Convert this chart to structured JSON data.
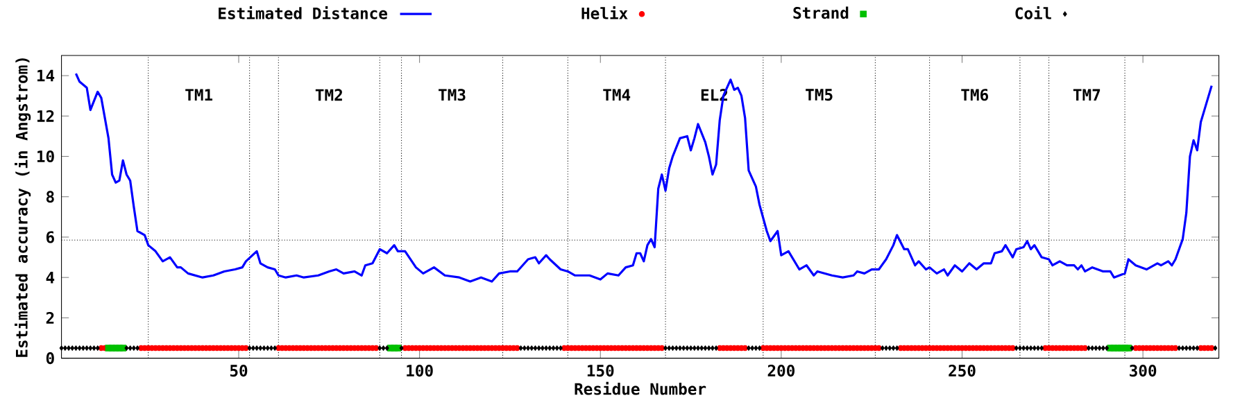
{
  "chart_data": {
    "type": "line",
    "xlabel": "Residue Number",
    "ylabel": "Estimated accuracy (in Angstrom)",
    "xlim": [
      1,
      321
    ],
    "ylim": [
      0,
      15
    ],
    "xticks": [
      50,
      100,
      150,
      200,
      250,
      300
    ],
    "yticks": [
      0,
      2,
      4,
      6,
      8,
      10,
      12,
      14
    ],
    "legend": "top",
    "ref_lines": [
      {
        "axis": "y",
        "value": 5.85,
        "line_style": "dotted"
      },
      {
        "axis": "x",
        "value": 25,
        "line_style": "dotted",
        "label": "TM1"
      },
      {
        "axis": "x",
        "value": 53,
        "line_style": "dotted"
      },
      {
        "axis": "x",
        "value": 61,
        "line_style": "dotted",
        "label": "TM2"
      },
      {
        "axis": "x",
        "value": 89,
        "line_style": "dotted"
      },
      {
        "axis": "x",
        "value": 95,
        "line_style": "dotted",
        "label": "TM3"
      },
      {
        "axis": "x",
        "value": 123,
        "line_style": "dotted"
      },
      {
        "axis": "x",
        "value": 141,
        "line_style": "dotted",
        "label": "TM4"
      },
      {
        "axis": "x",
        "value": 168,
        "line_style": "dotted",
        "label": "EL2"
      },
      {
        "axis": "x",
        "value": 195,
        "line_style": "dotted",
        "label": "TM5"
      },
      {
        "axis": "x",
        "value": 226,
        "line_style": "dotted"
      },
      {
        "axis": "x",
        "value": 241,
        "line_style": "dotted",
        "label": "TM6"
      },
      {
        "axis": "x",
        "value": 266,
        "line_style": "dotted"
      },
      {
        "axis": "x",
        "value": 274,
        "line_style": "dotted",
        "label": "TM7"
      },
      {
        "axis": "x",
        "value": 295,
        "line_style": "dotted"
      }
    ],
    "series": [
      {
        "name": "Estimated Distance",
        "color": "#0000ff",
        "marker": "none",
        "x": [
          5,
          6,
          8,
          9,
          11,
          12,
          14,
          15,
          16,
          17,
          18,
          19,
          20,
          21,
          22,
          24,
          25,
          27,
          29,
          31,
          33,
          34,
          36,
          40,
          43,
          46,
          49,
          51,
          52,
          55,
          56,
          58,
          60,
          61,
          63,
          66,
          68,
          72,
          75,
          77,
          79,
          82,
          84,
          85,
          87,
          89,
          91,
          93,
          94,
          96,
          99,
          101,
          104,
          107,
          111,
          114,
          117,
          120,
          122,
          125,
          127,
          130,
          132,
          133,
          135,
          136,
          139,
          141,
          143,
          147,
          150,
          152,
          155,
          157,
          159,
          160,
          161,
          162,
          163,
          164,
          165,
          166,
          167,
          168,
          169,
          170,
          172,
          174,
          175,
          176,
          177,
          179,
          180,
          181,
          182,
          183,
          184,
          186,
          187,
          188,
          189,
          190,
          191,
          193,
          194,
          196,
          197,
          199,
          200,
          202,
          205,
          207,
          209,
          210,
          214,
          217,
          220,
          221,
          223,
          225,
          227,
          229,
          231,
          232,
          234,
          235,
          237,
          238,
          240,
          241,
          243,
          245,
          246,
          248,
          250,
          252,
          254,
          256,
          258,
          259,
          261,
          262,
          264,
          265,
          267,
          268,
          269,
          270,
          272,
          274,
          275,
          277,
          279,
          281,
          282,
          283,
          284,
          286,
          289,
          291,
          292,
          295,
          296,
          298,
          301,
          304,
          305,
          307,
          308,
          309,
          311,
          312,
          313,
          314,
          315,
          316,
          317,
          318,
          319
        ],
        "values": [
          14.1,
          13.7,
          13.4,
          12.3,
          13.2,
          12.9,
          10.9,
          9.1,
          8.7,
          8.8,
          9.8,
          9.1,
          8.8,
          7.5,
          6.3,
          6.1,
          5.6,
          5.3,
          4.8,
          5.0,
          4.5,
          4.5,
          4.2,
          4.0,
          4.1,
          4.3,
          4.4,
          4.5,
          4.8,
          5.3,
          4.7,
          4.5,
          4.4,
          4.1,
          4.0,
          4.1,
          4.0,
          4.1,
          4.3,
          4.4,
          4.2,
          4.3,
          4.1,
          4.6,
          4.7,
          5.4,
          5.2,
          5.6,
          5.3,
          5.3,
          4.5,
          4.2,
          4.5,
          4.1,
          4.0,
          3.8,
          4.0,
          3.8,
          4.2,
          4.3,
          4.3,
          4.9,
          5.0,
          4.7,
          5.1,
          4.9,
          4.4,
          4.3,
          4.1,
          4.1,
          3.9,
          4.2,
          4.1,
          4.5,
          4.6,
          5.2,
          5.2,
          4.8,
          5.6,
          5.9,
          5.5,
          8.4,
          9.1,
          8.3,
          9.4,
          10.0,
          10.9,
          11.0,
          10.3,
          10.9,
          11.6,
          10.7,
          10.0,
          9.1,
          9.6,
          11.8,
          13.0,
          13.8,
          13.3,
          13.4,
          13.0,
          11.9,
          9.3,
          8.5,
          7.6,
          6.3,
          5.8,
          6.3,
          5.1,
          5.3,
          4.4,
          4.6,
          4.1,
          4.3,
          4.1,
          4.0,
          4.1,
          4.3,
          4.2,
          4.4,
          4.4,
          4.9,
          5.6,
          6.1,
          5.4,
          5.4,
          4.6,
          4.8,
          4.4,
          4.5,
          4.2,
          4.4,
          4.1,
          4.6,
          4.3,
          4.7,
          4.4,
          4.7,
          4.7,
          5.2,
          5.3,
          5.6,
          5.0,
          5.4,
          5.5,
          5.8,
          5.4,
          5.6,
          5.0,
          4.9,
          4.6,
          4.8,
          4.6,
          4.6,
          4.4,
          4.6,
          4.3,
          4.5,
          4.3,
          4.3,
          4.0,
          4.2,
          4.9,
          4.6,
          4.4,
          4.7,
          4.6,
          4.8,
          4.6,
          4.9,
          5.9,
          7.2,
          10.0,
          10.8,
          10.3,
          11.7,
          12.3,
          12.9,
          13.5
        ]
      },
      {
        "name": "Helix",
        "type": "scatter",
        "color": "#ff0000",
        "marker": "circle",
        "x": [
          12,
          13,
          23,
          24,
          25,
          26,
          27,
          28,
          29,
          30,
          31,
          32,
          33,
          34,
          35,
          36,
          37,
          38,
          39,
          40,
          41,
          42,
          43,
          44,
          45,
          46,
          47,
          48,
          49,
          50,
          51,
          52,
          61,
          62,
          63,
          64,
          65,
          66,
          67,
          68,
          69,
          70,
          71,
          72,
          73,
          74,
          75,
          76,
          77,
          78,
          79,
          80,
          81,
          82,
          83,
          84,
          85,
          86,
          87,
          88,
          96,
          97,
          98,
          99,
          100,
          101,
          102,
          103,
          104,
          105,
          106,
          107,
          108,
          109,
          110,
          111,
          112,
          113,
          114,
          115,
          116,
          117,
          118,
          119,
          120,
          121,
          122,
          123,
          124,
          125,
          126,
          127,
          140,
          141,
          142,
          143,
          144,
          145,
          146,
          147,
          148,
          149,
          150,
          151,
          152,
          153,
          154,
          155,
          156,
          157,
          158,
          159,
          160,
          161,
          162,
          163,
          164,
          165,
          166,
          167,
          183,
          184,
          185,
          186,
          187,
          188,
          189,
          190,
          195,
          196,
          197,
          198,
          199,
          200,
          201,
          202,
          203,
          204,
          205,
          206,
          207,
          208,
          209,
          210,
          211,
          212,
          213,
          214,
          215,
          216,
          217,
          218,
          219,
          220,
          221,
          222,
          223,
          224,
          225,
          226,
          227,
          233,
          234,
          235,
          236,
          237,
          238,
          239,
          240,
          241,
          242,
          243,
          244,
          245,
          246,
          247,
          248,
          249,
          250,
          251,
          252,
          253,
          254,
          255,
          256,
          257,
          258,
          259,
          260,
          261,
          262,
          263,
          264,
          273,
          274,
          275,
          276,
          277,
          278,
          279,
          280,
          281,
          282,
          283,
          284,
          298,
          299,
          300,
          301,
          302,
          303,
          304,
          305,
          306,
          307,
          308,
          309,
          316,
          317,
          318,
          319
        ],
        "values": [
          0.5,
          0.5,
          0.5,
          0.5,
          0.5,
          0.5,
          0.5,
          0.5,
          0.5,
          0.5,
          0.5,
          0.5,
          0.5,
          0.5,
          0.5,
          0.5,
          0.5,
          0.5,
          0.5,
          0.5,
          0.5,
          0.5,
          0.5,
          0.5,
          0.5,
          0.5,
          0.5,
          0.5,
          0.5,
          0.5,
          0.5,
          0.5,
          0.5,
          0.5,
          0.5,
          0.5,
          0.5,
          0.5,
          0.5,
          0.5,
          0.5,
          0.5,
          0.5,
          0.5,
          0.5,
          0.5,
          0.5,
          0.5,
          0.5,
          0.5,
          0.5,
          0.5,
          0.5,
          0.5,
          0.5,
          0.5,
          0.5,
          0.5,
          0.5,
          0.5,
          0.5,
          0.5,
          0.5,
          0.5,
          0.5,
          0.5,
          0.5,
          0.5,
          0.5,
          0.5,
          0.5,
          0.5,
          0.5,
          0.5,
          0.5,
          0.5,
          0.5,
          0.5,
          0.5,
          0.5,
          0.5,
          0.5,
          0.5,
          0.5,
          0.5,
          0.5,
          0.5,
          0.5,
          0.5,
          0.5,
          0.5,
          0.5,
          0.5,
          0.5,
          0.5,
          0.5,
          0.5,
          0.5,
          0.5,
          0.5,
          0.5,
          0.5,
          0.5,
          0.5,
          0.5,
          0.5,
          0.5,
          0.5,
          0.5,
          0.5,
          0.5,
          0.5,
          0.5,
          0.5,
          0.5,
          0.5,
          0.5,
          0.5,
          0.5,
          0.5,
          0.5,
          0.5,
          0.5,
          0.5,
          0.5,
          0.5,
          0.5,
          0.5,
          0.5,
          0.5,
          0.5,
          0.5,
          0.5,
          0.5,
          0.5,
          0.5,
          0.5,
          0.5,
          0.5,
          0.5,
          0.5,
          0.5,
          0.5,
          0.5,
          0.5,
          0.5,
          0.5,
          0.5,
          0.5,
          0.5,
          0.5,
          0.5,
          0.5,
          0.5,
          0.5,
          0.5,
          0.5,
          0.5,
          0.5,
          0.5,
          0.5,
          0.5,
          0.5,
          0.5,
          0.5,
          0.5,
          0.5,
          0.5,
          0.5,
          0.5,
          0.5,
          0.5,
          0.5,
          0.5,
          0.5,
          0.5,
          0.5,
          0.5,
          0.5,
          0.5,
          0.5,
          0.5,
          0.5,
          0.5,
          0.5,
          0.5,
          0.5,
          0.5,
          0.5,
          0.5,
          0.5,
          0.5,
          0.5,
          0.5,
          0.5,
          0.5,
          0.5,
          0.5,
          0.5,
          0.5,
          0.5,
          0.5,
          0.5,
          0.5,
          0.5,
          0.5,
          0.5,
          0.5,
          0.5,
          0.5,
          0.5,
          0.5,
          0.5,
          0.5,
          0.5,
          0.5,
          0.5,
          0.5,
          0.5,
          0.5,
          0.5
        ]
      },
      {
        "name": "Strand",
        "type": "scatter",
        "color": "#00c000",
        "marker": "square",
        "x": [
          14,
          15,
          16,
          17,
          18,
          92,
          93,
          94,
          291,
          292,
          293,
          294,
          295,
          296
        ],
        "values": [
          0.5,
          0.5,
          0.5,
          0.5,
          0.5,
          0.5,
          0.5,
          0.5,
          0.5,
          0.5,
          0.5,
          0.5,
          0.5,
          0.5
        ]
      },
      {
        "name": "Coil",
        "type": "scatter",
        "color": "#000000",
        "marker": "diamond",
        "x": [
          1,
          2,
          3,
          4,
          5,
          6,
          7,
          8,
          9,
          10,
          11,
          19,
          20,
          21,
          22,
          53,
          54,
          55,
          56,
          57,
          58,
          59,
          60,
          89,
          90,
          91,
          95,
          128,
          129,
          130,
          131,
          132,
          133,
          134,
          135,
          136,
          137,
          138,
          139,
          168,
          169,
          170,
          171,
          172,
          173,
          174,
          175,
          176,
          177,
          178,
          179,
          180,
          181,
          182,
          191,
          192,
          193,
          194,
          228,
          229,
          230,
          231,
          232,
          265,
          266,
          267,
          268,
          269,
          270,
          271,
          272,
          285,
          286,
          287,
          288,
          289,
          290,
          297,
          310,
          311,
          312,
          313,
          314,
          315,
          320
        ],
        "values": [
          0.5,
          0.5,
          0.5,
          0.5,
          0.5,
          0.5,
          0.5,
          0.5,
          0.5,
          0.5,
          0.5,
          0.5,
          0.5,
          0.5,
          0.5,
          0.5,
          0.5,
          0.5,
          0.5,
          0.5,
          0.5,
          0.5,
          0.5,
          0.5,
          0.5,
          0.5,
          0.5,
          0.5,
          0.5,
          0.5,
          0.5,
          0.5,
          0.5,
          0.5,
          0.5,
          0.5,
          0.5,
          0.5,
          0.5,
          0.5,
          0.5,
          0.5,
          0.5,
          0.5,
          0.5,
          0.5,
          0.5,
          0.5,
          0.5,
          0.5,
          0.5,
          0.5,
          0.5,
          0.5,
          0.5,
          0.5,
          0.5,
          0.5,
          0.5,
          0.5,
          0.5,
          0.5,
          0.5,
          0.5,
          0.5,
          0.5,
          0.5,
          0.5,
          0.5,
          0.5,
          0.5,
          0.5,
          0.5,
          0.5,
          0.5,
          0.5,
          0.5,
          0.5,
          0.5,
          0.5,
          0.5,
          0.5,
          0.5,
          0.5,
          0.5
        ]
      }
    ]
  }
}
